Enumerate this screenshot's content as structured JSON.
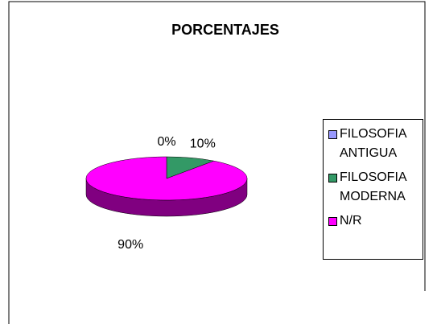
{
  "chart_data": {
    "type": "pie",
    "title": "PORCENTAJES",
    "categories": [
      "FILOSOFIA ANTIGUA",
      "FILOSOFIA MODERNA",
      "N/R"
    ],
    "values": [
      0,
      10,
      90
    ],
    "value_labels": [
      "0%",
      "10%",
      "90%"
    ],
    "colors": [
      "#9999ff",
      "#339966",
      "#ff00ff"
    ],
    "legend": "right"
  }
}
